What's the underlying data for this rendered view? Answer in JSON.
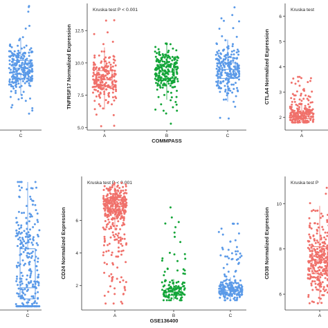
{
  "colors": {
    "A": "#f0716b",
    "B": "#13a538",
    "C": "#5b9ae8",
    "axis": "#333333",
    "text": "#222222"
  },
  "chart_data": [
    {
      "id": "left-top",
      "type": "scatter",
      "title": "",
      "xlabel": "",
      "ylabel": "",
      "categories": [
        "C"
      ],
      "ylim": [
        4.5,
        14.5
      ],
      "yticks": [],
      "series": [
        {
          "category": "C",
          "color_key": "C",
          "n": 260,
          "median": 9.4,
          "q1": 8.9,
          "q3": 10.0,
          "min": 5.8,
          "max": 14.3
        }
      ]
    },
    {
      "id": "tnfrsf17-commpass",
      "type": "scatter",
      "title": "Kruska test P < 0.001",
      "xlabel": "COMMPASS",
      "ylabel": "TNFRSF17 Normalized Expression",
      "categories": [
        "A",
        "B",
        "C"
      ],
      "ylim": [
        4.8,
        14.6
      ],
      "yticks": [
        "5.0",
        "7.5",
        "10.0",
        "12.5"
      ],
      "series": [
        {
          "category": "A",
          "color_key": "A",
          "n": 230,
          "median": 8.7,
          "q1": 8.2,
          "q3": 9.4,
          "min": 5.1,
          "max": 13.3
        },
        {
          "category": "B",
          "color_key": "B",
          "n": 230,
          "median": 9.3,
          "q1": 8.8,
          "q3": 9.9,
          "min": 5.3,
          "max": 11.5
        },
        {
          "category": "C",
          "color_key": "C",
          "n": 230,
          "median": 9.5,
          "q1": 8.8,
          "q3": 10.0,
          "min": 5.7,
          "max": 14.3
        }
      ]
    },
    {
      "id": "ctla4",
      "type": "scatter",
      "title": "Kruska test",
      "xlabel": "",
      "ylabel": "CTLA4 Normalized Expression",
      "categories": [
        "A"
      ],
      "ylim": [
        1.5,
        6.5
      ],
      "yticks": [
        "2",
        "3",
        "4",
        "5",
        "6"
      ],
      "series": [
        {
          "category": "A",
          "color_key": "A",
          "n": 220,
          "median": 2.05,
          "q1": 1.95,
          "q3": 2.2,
          "min": 1.8,
          "max": 3.6
        }
      ]
    },
    {
      "id": "left-bottom",
      "type": "scatter",
      "title": "",
      "xlabel": "",
      "ylabel": "",
      "categories": [
        "C"
      ],
      "ylim": [
        0,
        7.2
      ],
      "yticks": [],
      "series": [
        {
          "category": "C",
          "color_key": "C",
          "n": 280,
          "median": 1.2,
          "q1": 0.6,
          "q3": 3.3,
          "min": 0.2,
          "max": 6.9
        }
      ]
    },
    {
      "id": "cd24-gse136400",
      "type": "scatter",
      "title": "Kruska test P < 0.001",
      "xlabel": "GSE136400",
      "ylabel": "CD24 Normalized Expression",
      "categories": [
        "A",
        "B",
        "C"
      ],
      "ylim": [
        0.5,
        8.7
      ],
      "yticks": [
        "2",
        "4",
        "6"
      ],
      "series": [
        {
          "category": "A",
          "color_key": "A",
          "n": 380,
          "median": 7.0,
          "q1": 6.6,
          "q3": 7.4,
          "min": 0.9,
          "max": 8.3
        },
        {
          "category": "B",
          "color_key": "B",
          "n": 130,
          "median": 1.6,
          "q1": 1.4,
          "q3": 1.8,
          "min": 1.1,
          "max": 6.8
        },
        {
          "category": "C",
          "color_key": "C",
          "n": 200,
          "median": 1.7,
          "q1": 1.5,
          "q3": 1.9,
          "min": 1.1,
          "max": 5.8
        }
      ]
    },
    {
      "id": "cd38",
      "type": "scatter",
      "title": "Kruska test P",
      "xlabel": "",
      "ylabel": "CD38 Normalized Expression",
      "categories": [
        "A"
      ],
      "ylim": [
        5.3,
        11.2
      ],
      "yticks": [
        "6",
        "8",
        "10"
      ],
      "series": [
        {
          "category": "A",
          "color_key": "A",
          "n": 320,
          "median": 7.5,
          "q1": 6.9,
          "q3": 8.1,
          "min": 5.6,
          "max": 10.7
        }
      ]
    }
  ]
}
